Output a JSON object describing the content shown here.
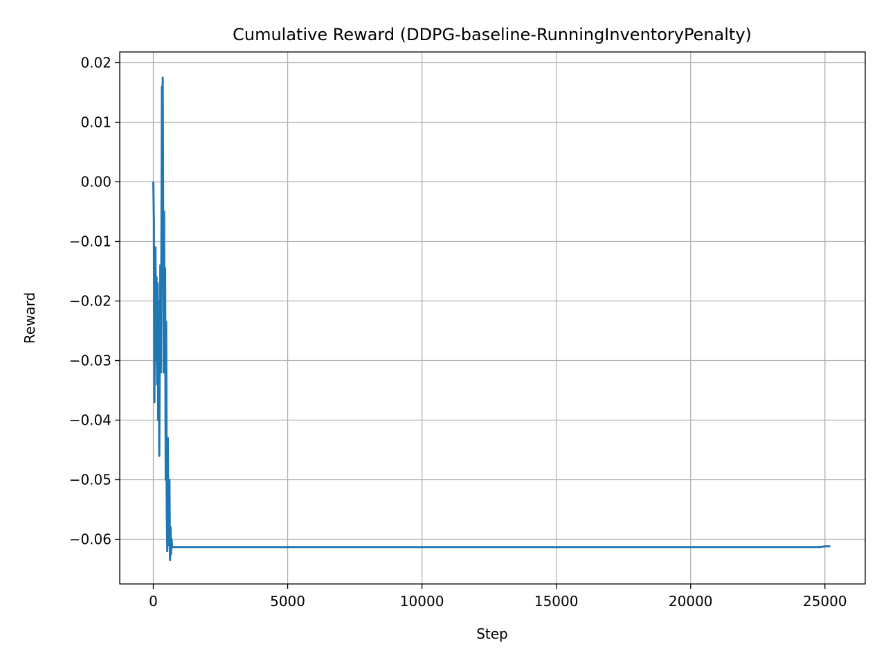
{
  "colors": {
    "line": "#1f77b4",
    "grid": "#b0b0b0",
    "axes": "#000000",
    "background": "#ffffff"
  },
  "chart_data": {
    "type": "line",
    "title": "Cumulative Reward (DDPG-baseline-RunningInventoryPenalty)",
    "xlabel": "Step",
    "ylabel": "Reward",
    "xlim": [
      -1250,
      26500
    ],
    "ylim": [
      -0.0675,
      0.0218
    ],
    "grid": true,
    "xticks": [
      0,
      5000,
      10000,
      15000,
      20000,
      25000
    ],
    "xtick_labels": [
      "0",
      "5000",
      "10000",
      "15000",
      "20000",
      "25000"
    ],
    "yticks": [
      0.02,
      0.01,
      0.0,
      -0.01,
      -0.02,
      -0.03,
      -0.04,
      -0.05,
      -0.06
    ],
    "ytick_labels": [
      "0.02",
      "0.01",
      "0.00",
      "−0.01",
      "−0.02",
      "−0.03",
      "−0.04",
      "−0.05",
      "−0.06"
    ],
    "series": [
      {
        "x": [
          0,
          20,
          40,
          60,
          80,
          100,
          120,
          140,
          160,
          180,
          200,
          220,
          240,
          260,
          280,
          300,
          320,
          340,
          350,
          360,
          380,
          400,
          420,
          440,
          460,
          480,
          500,
          520,
          540,
          560,
          580,
          600,
          620,
          640,
          660,
          680,
          700,
          800,
          1000,
          2000,
          5000,
          10000,
          15000,
          20000,
          24800,
          25000,
          25200
        ],
        "y": [
          0.0,
          -0.0065,
          -0.037,
          -0.018,
          -0.011,
          -0.03,
          -0.016,
          -0.034,
          -0.017,
          -0.04,
          -0.02,
          -0.046,
          -0.028,
          -0.014,
          -0.032,
          -0.01,
          0.016,
          -0.015,
          0.0175,
          0.005,
          -0.032,
          -0.005,
          -0.029,
          -0.0145,
          -0.05,
          -0.0235,
          -0.055,
          -0.062,
          -0.043,
          -0.058,
          -0.061,
          -0.05,
          -0.0635,
          -0.058,
          -0.0625,
          -0.06,
          -0.0613,
          -0.0613,
          -0.0613,
          -0.0613,
          -0.0613,
          -0.0613,
          -0.0613,
          -0.0613,
          -0.0613,
          -0.0612,
          -0.0612
        ]
      }
    ]
  }
}
